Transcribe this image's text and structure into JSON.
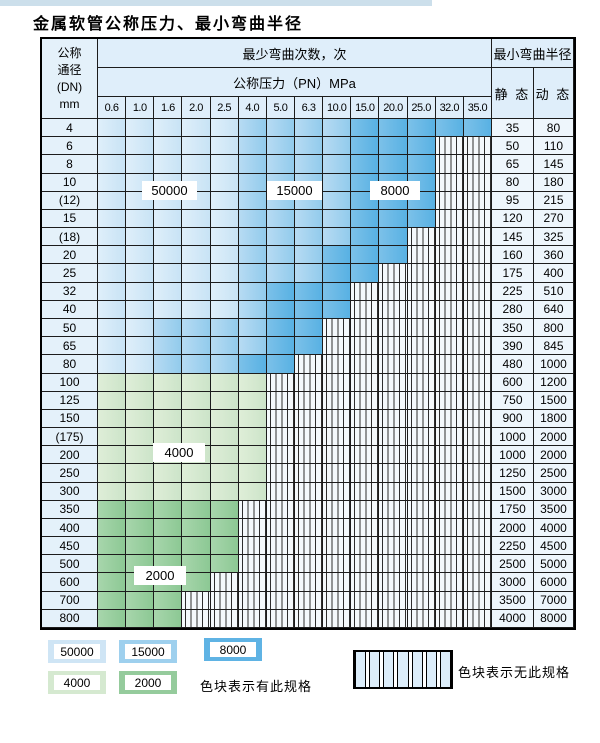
{
  "title": "金属软管公称压力、最小弯曲半径",
  "table": {
    "header": {
      "dn_lines": [
        "公称",
        "通径",
        "(DN)",
        "mm"
      ],
      "bend_cycles_label": "最少弯曲次数，次",
      "pressure_label": "公称压力（PN）MPa",
      "min_bend_radius_label": "最小弯曲半径",
      "static_label": "静 态",
      "dynamic_label": "动 态",
      "pressure_columns": [
        "0.6",
        "1.0",
        "1.6",
        "2.0",
        "2.5",
        "4.0",
        "5.0",
        "6.3",
        "10.0",
        "15.0",
        "20.0",
        "25.0",
        "32.0",
        "35.0"
      ]
    },
    "shade_legend_note": "L=50000次 M=15000次 D=8000次 G=4000次 H=2000次 S=无此规格",
    "rows": [
      {
        "dn": "4",
        "static": "35",
        "dynamic": "80",
        "shades": [
          "L",
          "L",
          "L",
          "L",
          "L",
          "M",
          "M",
          "M",
          "M",
          "D",
          "D",
          "D",
          "D",
          "D"
        ]
      },
      {
        "dn": "6",
        "static": "50",
        "dynamic": "110",
        "shades": [
          "L",
          "L",
          "L",
          "L",
          "L",
          "M",
          "M",
          "M",
          "M",
          "D",
          "D",
          "D",
          "S",
          "S"
        ]
      },
      {
        "dn": "8",
        "static": "65",
        "dynamic": "145",
        "shades": [
          "L",
          "L",
          "L",
          "L",
          "L",
          "M",
          "M",
          "M",
          "M",
          "D",
          "D",
          "D",
          "S",
          "S"
        ]
      },
      {
        "dn": "10",
        "static": "80",
        "dynamic": "180",
        "shades": [
          "L",
          "L",
          "L",
          "L",
          "L",
          "M",
          "M",
          "M",
          "M",
          "D",
          "D",
          "D",
          "S",
          "S"
        ]
      },
      {
        "dn": "(12)",
        "static": "95",
        "dynamic": "215",
        "shades": [
          "L",
          "L",
          "L",
          "L",
          "L",
          "M",
          "M",
          "M",
          "M",
          "D",
          "D",
          "D",
          "S",
          "S"
        ]
      },
      {
        "dn": "15",
        "static": "120",
        "dynamic": "270",
        "shades": [
          "L",
          "L",
          "L",
          "L",
          "L",
          "M",
          "M",
          "M",
          "M",
          "D",
          "D",
          "D",
          "S",
          "S"
        ]
      },
      {
        "dn": "(18)",
        "static": "145",
        "dynamic": "325",
        "shades": [
          "L",
          "L",
          "L",
          "L",
          "L",
          "M",
          "M",
          "M",
          "M",
          "D",
          "D",
          "S",
          "S",
          "S"
        ]
      },
      {
        "dn": "20",
        "static": "160",
        "dynamic": "360",
        "shades": [
          "L",
          "L",
          "L",
          "L",
          "L",
          "M",
          "M",
          "M",
          "D",
          "D",
          "D",
          "S",
          "S",
          "S"
        ]
      },
      {
        "dn": "25",
        "static": "175",
        "dynamic": "400",
        "shades": [
          "L",
          "L",
          "L",
          "L",
          "L",
          "M",
          "M",
          "M",
          "D",
          "D",
          "S",
          "S",
          "S",
          "S"
        ]
      },
      {
        "dn": "32",
        "static": "225",
        "dynamic": "510",
        "shades": [
          "L",
          "L",
          "L",
          "L",
          "L",
          "M",
          "D",
          "D",
          "D",
          "S",
          "S",
          "S",
          "S",
          "S"
        ]
      },
      {
        "dn": "40",
        "static": "280",
        "dynamic": "640",
        "shades": [
          "L",
          "L",
          "L",
          "L",
          "L",
          "M",
          "D",
          "D",
          "D",
          "S",
          "S",
          "S",
          "S",
          "S"
        ]
      },
      {
        "dn": "50",
        "static": "350",
        "dynamic": "800",
        "shades": [
          "L",
          "L",
          "M",
          "M",
          "M",
          "M",
          "D",
          "D",
          "S",
          "S",
          "S",
          "S",
          "S",
          "S"
        ]
      },
      {
        "dn": "65",
        "static": "390",
        "dynamic": "845",
        "shades": [
          "L",
          "L",
          "M",
          "M",
          "M",
          "M",
          "D",
          "D",
          "S",
          "S",
          "S",
          "S",
          "S",
          "S"
        ]
      },
      {
        "dn": "80",
        "static": "480",
        "dynamic": "1000",
        "shades": [
          "L",
          "L",
          "M",
          "M",
          "M",
          "D",
          "D",
          "S",
          "S",
          "S",
          "S",
          "S",
          "S",
          "S"
        ]
      },
      {
        "dn": "100",
        "static": "600",
        "dynamic": "1200",
        "shades": [
          "G",
          "G",
          "G",
          "G",
          "G",
          "G",
          "S",
          "S",
          "S",
          "S",
          "S",
          "S",
          "S",
          "S"
        ]
      },
      {
        "dn": "125",
        "static": "750",
        "dynamic": "1500",
        "shades": [
          "G",
          "G",
          "G",
          "G",
          "G",
          "G",
          "S",
          "S",
          "S",
          "S",
          "S",
          "S",
          "S",
          "S"
        ]
      },
      {
        "dn": "150",
        "static": "900",
        "dynamic": "1800",
        "shades": [
          "G",
          "G",
          "G",
          "G",
          "G",
          "G",
          "S",
          "S",
          "S",
          "S",
          "S",
          "S",
          "S",
          "S"
        ]
      },
      {
        "dn": "(175)",
        "static": "1000",
        "dynamic": "2000",
        "shades": [
          "G",
          "G",
          "G",
          "G",
          "G",
          "G",
          "S",
          "S",
          "S",
          "S",
          "S",
          "S",
          "S",
          "S"
        ]
      },
      {
        "dn": "200",
        "static": "1000",
        "dynamic": "2000",
        "shades": [
          "G",
          "G",
          "G",
          "G",
          "G",
          "G",
          "S",
          "S",
          "S",
          "S",
          "S",
          "S",
          "S",
          "S"
        ]
      },
      {
        "dn": "250",
        "static": "1250",
        "dynamic": "2500",
        "shades": [
          "G",
          "G",
          "G",
          "G",
          "G",
          "G",
          "S",
          "S",
          "S",
          "S",
          "S",
          "S",
          "S",
          "S"
        ]
      },
      {
        "dn": "300",
        "static": "1500",
        "dynamic": "3000",
        "shades": [
          "G",
          "G",
          "G",
          "G",
          "G",
          "G",
          "S",
          "S",
          "S",
          "S",
          "S",
          "S",
          "S",
          "S"
        ]
      },
      {
        "dn": "350",
        "static": "1750",
        "dynamic": "3500",
        "shades": [
          "H",
          "H",
          "H",
          "H",
          "H",
          "S",
          "S",
          "S",
          "S",
          "S",
          "S",
          "S",
          "S",
          "S"
        ]
      },
      {
        "dn": "400",
        "static": "2000",
        "dynamic": "4000",
        "shades": [
          "H",
          "H",
          "H",
          "H",
          "H",
          "S",
          "S",
          "S",
          "S",
          "S",
          "S",
          "S",
          "S",
          "S"
        ]
      },
      {
        "dn": "450",
        "static": "2250",
        "dynamic": "4500",
        "shades": [
          "H",
          "H",
          "H",
          "H",
          "H",
          "S",
          "S",
          "S",
          "S",
          "S",
          "S",
          "S",
          "S",
          "S"
        ]
      },
      {
        "dn": "500",
        "static": "2500",
        "dynamic": "5000",
        "shades": [
          "H",
          "H",
          "H",
          "H",
          "H",
          "S",
          "S",
          "S",
          "S",
          "S",
          "S",
          "S",
          "S",
          "S"
        ]
      },
      {
        "dn": "600",
        "static": "3000",
        "dynamic": "6000",
        "shades": [
          "H",
          "H",
          "H",
          "H",
          "S",
          "S",
          "S",
          "S",
          "S",
          "S",
          "S",
          "S",
          "S",
          "S"
        ]
      },
      {
        "dn": "700",
        "static": "3500",
        "dynamic": "7000",
        "shades": [
          "H",
          "H",
          "H",
          "S",
          "S",
          "S",
          "S",
          "S",
          "S",
          "S",
          "S",
          "S",
          "S",
          "S"
        ]
      },
      {
        "dn": "800",
        "static": "4000",
        "dynamic": "8000",
        "shades": [
          "H",
          "H",
          "H",
          "S",
          "S",
          "S",
          "S",
          "S",
          "S",
          "S",
          "S",
          "S",
          "S",
          "S"
        ]
      }
    ],
    "overlay_labels": [
      "50000",
      "15000",
      "8000",
      "4000",
      "2000"
    ]
  },
  "legend": {
    "chips": [
      {
        "label": "50000",
        "shade": "L"
      },
      {
        "label": "15000",
        "shade": "M"
      },
      {
        "label": "8000",
        "shade": "D"
      },
      {
        "label": "4000",
        "shade": "G"
      },
      {
        "label": "2000",
        "shade": "H"
      }
    ],
    "has_spec_text": "色块表示有此规格",
    "no_spec_text": "色块表示无此规格",
    "stripe_cells": 7
  },
  "colors": {
    "blue_50000": "#cfe5f5",
    "blue_15000": "#9ed0ee",
    "blue_8000": "#5fb3e4",
    "green_4000": "#d5e9d0",
    "green_2000": "#95cb9c",
    "header_bg": "#dfeefa",
    "stripe_line": "#2e2e2e",
    "grid_line": "#1c1c1c"
  }
}
